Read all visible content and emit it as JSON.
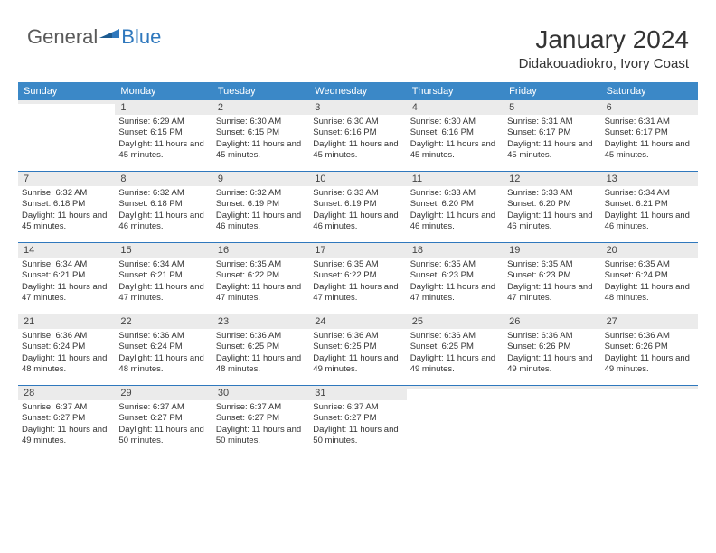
{
  "logo": {
    "general": "General",
    "blue": "Blue"
  },
  "title": "January 2024",
  "location": "Didakouadiokro, Ivory Coast",
  "colors": {
    "header_bg": "#3b88c7",
    "border": "#2f78bd",
    "daynum_bg": "#ebebeb",
    "text": "#333333",
    "logo_gray": "#5a5a5a",
    "logo_blue": "#2f78bd"
  },
  "weekdays": [
    "Sunday",
    "Monday",
    "Tuesday",
    "Wednesday",
    "Thursday",
    "Friday",
    "Saturday"
  ],
  "weeks": [
    [
      {
        "n": "",
        "sr": "",
        "ss": "",
        "dl": ""
      },
      {
        "n": "1",
        "sr": "Sunrise: 6:29 AM",
        "ss": "Sunset: 6:15 PM",
        "dl": "Daylight: 11 hours and 45 minutes."
      },
      {
        "n": "2",
        "sr": "Sunrise: 6:30 AM",
        "ss": "Sunset: 6:15 PM",
        "dl": "Daylight: 11 hours and 45 minutes."
      },
      {
        "n": "3",
        "sr": "Sunrise: 6:30 AM",
        "ss": "Sunset: 6:16 PM",
        "dl": "Daylight: 11 hours and 45 minutes."
      },
      {
        "n": "4",
        "sr": "Sunrise: 6:30 AM",
        "ss": "Sunset: 6:16 PM",
        "dl": "Daylight: 11 hours and 45 minutes."
      },
      {
        "n": "5",
        "sr": "Sunrise: 6:31 AM",
        "ss": "Sunset: 6:17 PM",
        "dl": "Daylight: 11 hours and 45 minutes."
      },
      {
        "n": "6",
        "sr": "Sunrise: 6:31 AM",
        "ss": "Sunset: 6:17 PM",
        "dl": "Daylight: 11 hours and 45 minutes."
      }
    ],
    [
      {
        "n": "7",
        "sr": "Sunrise: 6:32 AM",
        "ss": "Sunset: 6:18 PM",
        "dl": "Daylight: 11 hours and 45 minutes."
      },
      {
        "n": "8",
        "sr": "Sunrise: 6:32 AM",
        "ss": "Sunset: 6:18 PM",
        "dl": "Daylight: 11 hours and 46 minutes."
      },
      {
        "n": "9",
        "sr": "Sunrise: 6:32 AM",
        "ss": "Sunset: 6:19 PM",
        "dl": "Daylight: 11 hours and 46 minutes."
      },
      {
        "n": "10",
        "sr": "Sunrise: 6:33 AM",
        "ss": "Sunset: 6:19 PM",
        "dl": "Daylight: 11 hours and 46 minutes."
      },
      {
        "n": "11",
        "sr": "Sunrise: 6:33 AM",
        "ss": "Sunset: 6:20 PM",
        "dl": "Daylight: 11 hours and 46 minutes."
      },
      {
        "n": "12",
        "sr": "Sunrise: 6:33 AM",
        "ss": "Sunset: 6:20 PM",
        "dl": "Daylight: 11 hours and 46 minutes."
      },
      {
        "n": "13",
        "sr": "Sunrise: 6:34 AM",
        "ss": "Sunset: 6:21 PM",
        "dl": "Daylight: 11 hours and 46 minutes."
      }
    ],
    [
      {
        "n": "14",
        "sr": "Sunrise: 6:34 AM",
        "ss": "Sunset: 6:21 PM",
        "dl": "Daylight: 11 hours and 47 minutes."
      },
      {
        "n": "15",
        "sr": "Sunrise: 6:34 AM",
        "ss": "Sunset: 6:21 PM",
        "dl": "Daylight: 11 hours and 47 minutes."
      },
      {
        "n": "16",
        "sr": "Sunrise: 6:35 AM",
        "ss": "Sunset: 6:22 PM",
        "dl": "Daylight: 11 hours and 47 minutes."
      },
      {
        "n": "17",
        "sr": "Sunrise: 6:35 AM",
        "ss": "Sunset: 6:22 PM",
        "dl": "Daylight: 11 hours and 47 minutes."
      },
      {
        "n": "18",
        "sr": "Sunrise: 6:35 AM",
        "ss": "Sunset: 6:23 PM",
        "dl": "Daylight: 11 hours and 47 minutes."
      },
      {
        "n": "19",
        "sr": "Sunrise: 6:35 AM",
        "ss": "Sunset: 6:23 PM",
        "dl": "Daylight: 11 hours and 47 minutes."
      },
      {
        "n": "20",
        "sr": "Sunrise: 6:35 AM",
        "ss": "Sunset: 6:24 PM",
        "dl": "Daylight: 11 hours and 48 minutes."
      }
    ],
    [
      {
        "n": "21",
        "sr": "Sunrise: 6:36 AM",
        "ss": "Sunset: 6:24 PM",
        "dl": "Daylight: 11 hours and 48 minutes."
      },
      {
        "n": "22",
        "sr": "Sunrise: 6:36 AM",
        "ss": "Sunset: 6:24 PM",
        "dl": "Daylight: 11 hours and 48 minutes."
      },
      {
        "n": "23",
        "sr": "Sunrise: 6:36 AM",
        "ss": "Sunset: 6:25 PM",
        "dl": "Daylight: 11 hours and 48 minutes."
      },
      {
        "n": "24",
        "sr": "Sunrise: 6:36 AM",
        "ss": "Sunset: 6:25 PM",
        "dl": "Daylight: 11 hours and 49 minutes."
      },
      {
        "n": "25",
        "sr": "Sunrise: 6:36 AM",
        "ss": "Sunset: 6:25 PM",
        "dl": "Daylight: 11 hours and 49 minutes."
      },
      {
        "n": "26",
        "sr": "Sunrise: 6:36 AM",
        "ss": "Sunset: 6:26 PM",
        "dl": "Daylight: 11 hours and 49 minutes."
      },
      {
        "n": "27",
        "sr": "Sunrise: 6:36 AM",
        "ss": "Sunset: 6:26 PM",
        "dl": "Daylight: 11 hours and 49 minutes."
      }
    ],
    [
      {
        "n": "28",
        "sr": "Sunrise: 6:37 AM",
        "ss": "Sunset: 6:27 PM",
        "dl": "Daylight: 11 hours and 49 minutes."
      },
      {
        "n": "29",
        "sr": "Sunrise: 6:37 AM",
        "ss": "Sunset: 6:27 PM",
        "dl": "Daylight: 11 hours and 50 minutes."
      },
      {
        "n": "30",
        "sr": "Sunrise: 6:37 AM",
        "ss": "Sunset: 6:27 PM",
        "dl": "Daylight: 11 hours and 50 minutes."
      },
      {
        "n": "31",
        "sr": "Sunrise: 6:37 AM",
        "ss": "Sunset: 6:27 PM",
        "dl": "Daylight: 11 hours and 50 minutes."
      },
      {
        "n": "",
        "sr": "",
        "ss": "",
        "dl": ""
      },
      {
        "n": "",
        "sr": "",
        "ss": "",
        "dl": ""
      },
      {
        "n": "",
        "sr": "",
        "ss": "",
        "dl": ""
      }
    ]
  ]
}
